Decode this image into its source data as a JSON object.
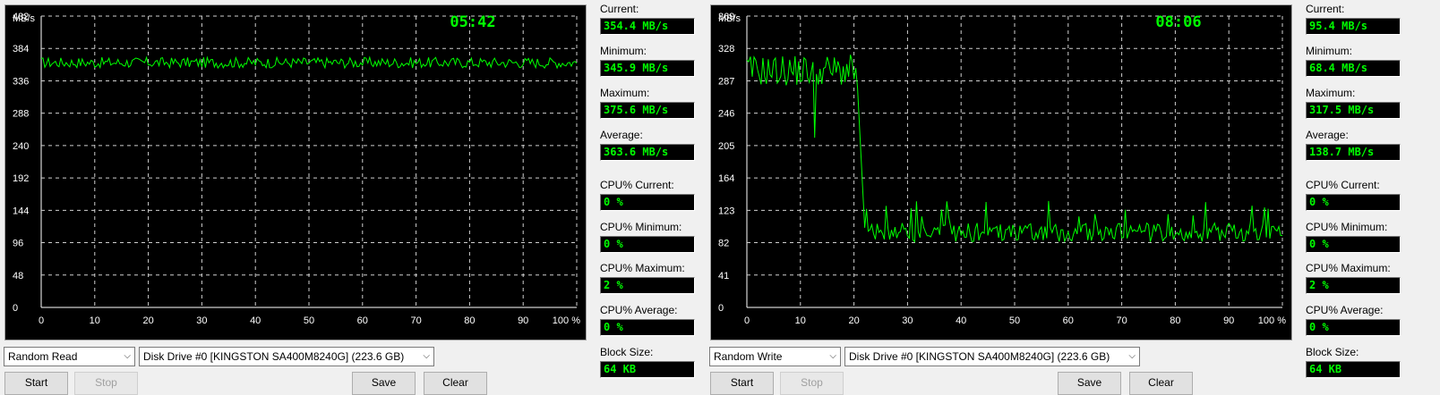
{
  "panels": [
    {
      "time": "05:42",
      "y_unit": "MB/s",
      "y_ticks": [
        "0",
        "48",
        "96",
        "144",
        "192",
        "240",
        "288",
        "336",
        "384",
        "432"
      ],
      "x_ticks": [
        "0",
        "10",
        "20",
        "30",
        "40",
        "50",
        "60",
        "70",
        "80",
        "90",
        "100 %"
      ],
      "trace_color": "#00ff00",
      "stats": [
        {
          "label": "Current:",
          "value": "354.4 MB/s"
        },
        {
          "label": "Minimum:",
          "value": "345.9 MB/s"
        },
        {
          "label": "Maximum:",
          "value": "375.6 MB/s"
        },
        {
          "label": "Average:",
          "value": "363.6 MB/s"
        },
        {
          "label": "CPU% Current:",
          "value": "0 %"
        },
        {
          "label": "CPU% Minimum:",
          "value": "0 %"
        },
        {
          "label": "CPU% Maximum:",
          "value": "2 %"
        },
        {
          "label": "CPU% Average:",
          "value": "0 %"
        },
        {
          "label": "Block Size:",
          "value": "64 KB"
        }
      ],
      "mode": "Random Read",
      "drive": "Disk Drive #0  [KINGSTON SA400M8240G]  (223.6 GB)",
      "buttons": {
        "start": "Start",
        "stop": "Stop",
        "save": "Save",
        "clear": "Clear"
      }
    },
    {
      "time": "08:06",
      "y_unit": "MB/s",
      "y_ticks": [
        "0",
        "41",
        "82",
        "123",
        "164",
        "205",
        "246",
        "287",
        "328",
        "369"
      ],
      "x_ticks": [
        "0",
        "10",
        "20",
        "30",
        "40",
        "50",
        "60",
        "70",
        "80",
        "90",
        "100 %"
      ],
      "trace_color": "#00ff00",
      "stats": [
        {
          "label": "Current:",
          "value": "95.4 MB/s"
        },
        {
          "label": "Minimum:",
          "value": "68.4 MB/s"
        },
        {
          "label": "Maximum:",
          "value": "317.5 MB/s"
        },
        {
          "label": "Average:",
          "value": "138.7 MB/s"
        },
        {
          "label": "CPU% Current:",
          "value": "0 %"
        },
        {
          "label": "CPU% Minimum:",
          "value": "0 %"
        },
        {
          "label": "CPU% Maximum:",
          "value": "2 %"
        },
        {
          "label": "CPU% Average:",
          "value": "0 %"
        },
        {
          "label": "Block Size:",
          "value": "64 KB"
        }
      ],
      "mode": "Random Write",
      "drive": "Disk Drive #0  [KINGSTON SA400M8240G]  (223.6 GB)",
      "buttons": {
        "start": "Start",
        "stop": "Stop",
        "save": "Save",
        "clear": "Clear"
      }
    }
  ]
}
